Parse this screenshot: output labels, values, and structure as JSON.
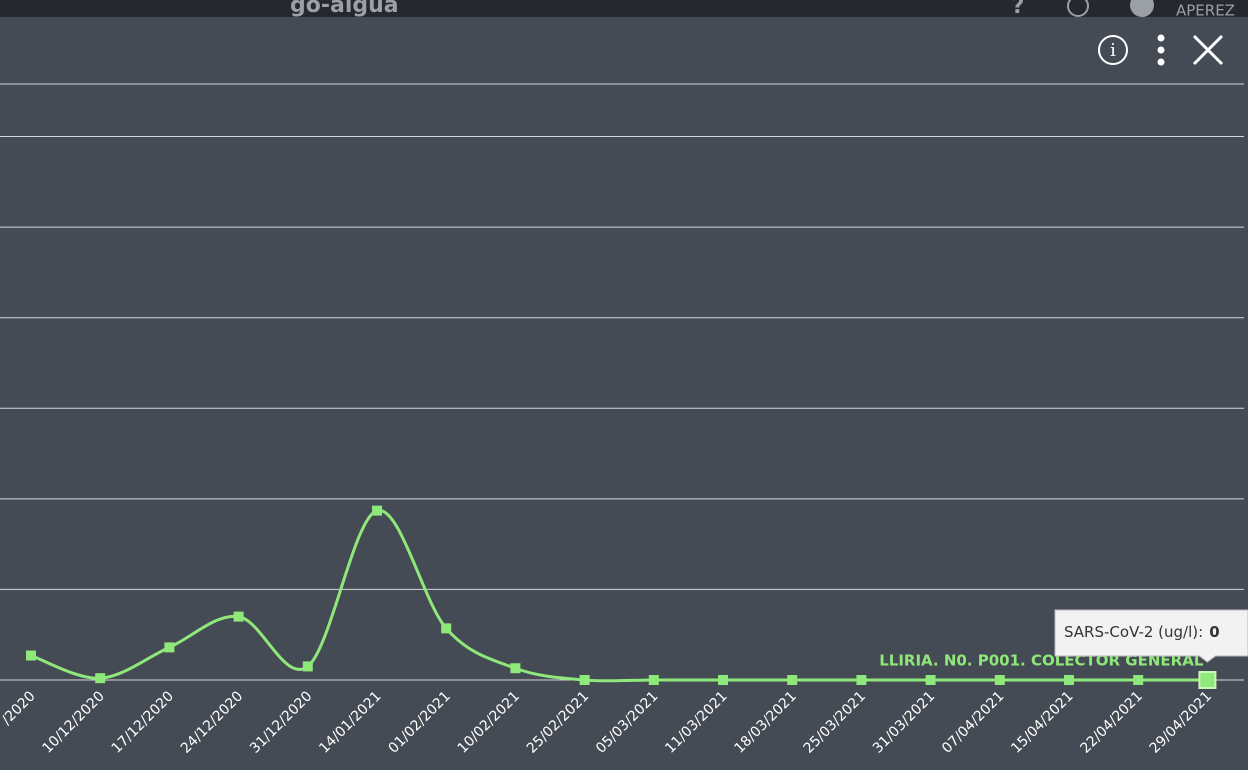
{
  "app": {
    "brand": "go-aigua",
    "user": "APEREZ"
  },
  "chart_data": {
    "type": "line",
    "categories": [
      "/2020",
      "10/12/2020",
      "17/12/2020",
      "24/12/2020",
      "31/12/2020",
      "14/01/2021",
      "01/02/2021",
      "10/02/2021",
      "25/02/2021",
      "05/03/2021",
      "11/03/2021",
      "18/03/2021",
      "25/03/2021",
      "31/03/2021",
      "07/04/2021",
      "15/04/2021",
      "22/04/2021",
      "29/04/2021"
    ],
    "series": [
      {
        "name": "LLIRIA. N0. P001. COLECTOR GENERAL",
        "color": "#8fe87a",
        "values": [
          0.27,
          0.02,
          0.36,
          0.7,
          0.15,
          1.87,
          0.57,
          0.13,
          0,
          0,
          0,
          0,
          0,
          0,
          0,
          0,
          0,
          0
        ]
      }
    ],
    "ylim": [
      0,
      6.58
    ],
    "yticks": [
      0,
      1,
      2,
      3,
      4,
      5,
      6
    ],
    "grid": true,
    "ytick_labels": false,
    "tooltip": {
      "label": "SARS-CoV-2 (ug/l):",
      "index": 17
    }
  }
}
